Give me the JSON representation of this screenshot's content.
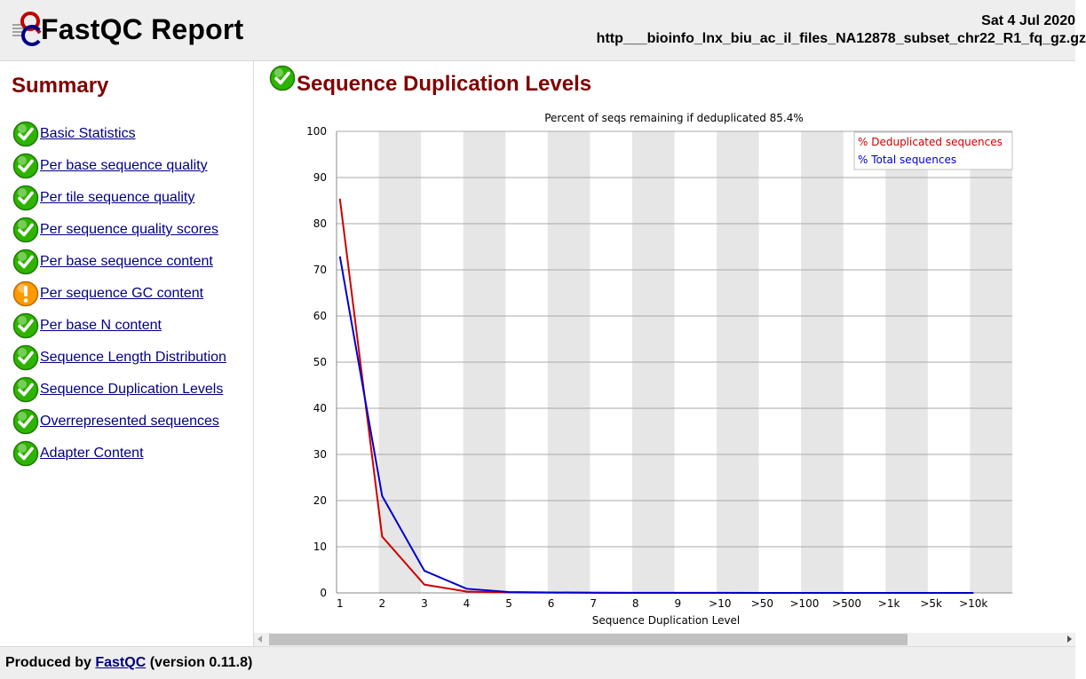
{
  "header": {
    "title": "FastQC Report",
    "date": "Sat 4 Jul 2020",
    "filename": "http___bioinfo_lnx_biu_ac_il_files_NA12878_subset_chr22_R1_fq_gz.gz"
  },
  "sidebar": {
    "title": "Summary",
    "modules": [
      {
        "label": "Basic Statistics",
        "status": "pass"
      },
      {
        "label": "Per base sequence quality",
        "status": "pass"
      },
      {
        "label": "Per tile sequence quality",
        "status": "pass"
      },
      {
        "label": "Per sequence quality scores",
        "status": "pass"
      },
      {
        "label": "Per base sequence content",
        "status": "pass"
      },
      {
        "label": "Per sequence GC content",
        "status": "warn"
      },
      {
        "label": "Per base N content",
        "status": "pass"
      },
      {
        "label": "Sequence Length Distribution",
        "status": "pass"
      },
      {
        "label": "Sequence Duplication Levels",
        "status": "pass"
      },
      {
        "label": "Overrepresented sequences",
        "status": "pass"
      },
      {
        "label": "Adapter Content",
        "status": "pass"
      }
    ]
  },
  "main": {
    "title": "Sequence Duplication Levels",
    "status": "pass"
  },
  "footer": {
    "prefix": "Produced by ",
    "link": "FastQC",
    "suffix": " (version 0.11.8)"
  },
  "colors": {
    "pass": "#2db400",
    "warn": "#ff9a00",
    "title": "#800000",
    "link": "#000080"
  },
  "chart_data": {
    "type": "line",
    "title": "Percent of seqs remaining if deduplicated 85.4%",
    "xlabel": "Sequence Duplication Level",
    "ylabel": "",
    "ylim": [
      0,
      100
    ],
    "yticks": [
      0,
      10,
      20,
      30,
      40,
      50,
      60,
      70,
      80,
      90,
      100
    ],
    "categories": [
      "1",
      "2",
      "3",
      "4",
      "5",
      "6",
      "7",
      "8",
      "9",
      ">10",
      ">50",
      ">100",
      ">500",
      ">1k",
      ">5k",
      ">10k"
    ],
    "grid": true,
    "legend_position": "top-right",
    "series": [
      {
        "name": "% Deduplicated sequences",
        "color": "#cc0000",
        "values": [
          85.4,
          12.2,
          1.8,
          0.3,
          0.1,
          0.05,
          0.02,
          0.01,
          0.01,
          0.01,
          0,
          0,
          0,
          0,
          0,
          0
        ]
      },
      {
        "name": "% Total sequences",
        "color": "#0000cc",
        "values": [
          72.9,
          21.0,
          4.8,
          0.9,
          0.2,
          0.1,
          0.05,
          0.03,
          0.02,
          0.02,
          0,
          0,
          0,
          0,
          0,
          0
        ]
      }
    ]
  }
}
